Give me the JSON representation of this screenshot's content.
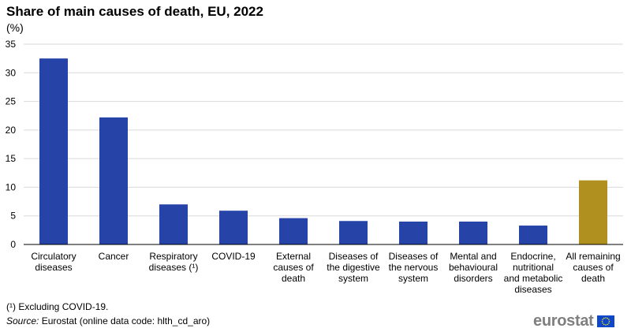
{
  "title": "Share of main causes of death, EU, 2022",
  "unit_label": "(%)",
  "footnote": "(¹) Excluding COVID-19.",
  "source_label": "Source:",
  "source_text": "Eurostat (online data code: hlth_cd_aro)",
  "logo_text": "eurostat",
  "colors": {
    "bar_primary": "#2644a7",
    "bar_highlight": "#b09120",
    "grid": "#d9d9d9",
    "axis": "#000000"
  },
  "chart_data": {
    "type": "bar",
    "title": "Share of main causes of death, EU, 2022",
    "ylabel": "(%)",
    "xlabel": "",
    "ylim": [
      0,
      35
    ],
    "yticks": [
      0,
      5,
      10,
      15,
      20,
      25,
      30,
      35
    ],
    "grid": true,
    "categories": [
      [
        "Circulatory",
        "diseases"
      ],
      [
        "Cancer"
      ],
      [
        "Respiratory",
        "diseases (¹)"
      ],
      [
        "COVID-19"
      ],
      [
        "External",
        "causes of",
        "death"
      ],
      [
        "Diseases of",
        "the digestive",
        "system"
      ],
      [
        "Diseases of",
        "the nervous",
        "system"
      ],
      [
        "Mental and",
        "behavioural",
        "disorders"
      ],
      [
        "Endocrine,",
        "nutritional",
        "and metabolic",
        "diseases"
      ],
      [
        "All remaining",
        "causes of",
        "death"
      ]
    ],
    "values": [
      32.5,
      22.2,
      7.0,
      5.9,
      4.6,
      4.1,
      4.0,
      4.0,
      3.3,
      11.2
    ],
    "highlight_index": 9
  }
}
